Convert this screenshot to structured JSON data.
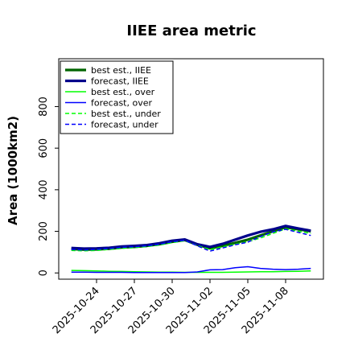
{
  "chart_data": {
    "type": "line",
    "title": "IIEE area metric",
    "xlabel": "",
    "ylabel": "Area (1000km2)",
    "ylim": [
      -30,
      1030
    ],
    "xlim": [
      "2025-10-21",
      "2025-11-11"
    ],
    "yticks": [
      0,
      200,
      400,
      600,
      800
    ],
    "xticks": [
      "2025-10-24",
      "2025-10-27",
      "2025-10-30",
      "2025-11-02",
      "2025-11-05",
      "2025-11-08"
    ],
    "xtick_colors": [
      "#000000",
      "#000000",
      "#228B22",
      "#000000",
      "#000000",
      "#000000"
    ],
    "legend_placement": "upper-left",
    "grid": false,
    "x": [
      "2025-10-22",
      "2025-10-23",
      "2025-10-24",
      "2025-10-25",
      "2025-10-26",
      "2025-10-27",
      "2025-10-28",
      "2025-10-29",
      "2025-10-30",
      "2025-10-31",
      "2025-11-01",
      "2025-11-02",
      "2025-11-03",
      "2025-11-04",
      "2025-11-05",
      "2025-11-06",
      "2025-11-07",
      "2025-11-08",
      "2025-11-09",
      "2025-11-10"
    ],
    "series": [
      {
        "name": "best est., IIEE",
        "color": "#006400",
        "style": "solid",
        "width": "thick",
        "values": [
          115,
          112,
          113,
          116,
          122,
          125,
          130,
          138,
          150,
          158,
          135,
          118,
          130,
          145,
          160,
          180,
          200,
          220,
          210,
          200
        ]
      },
      {
        "name": "forecast, IIEE",
        "color": "#00008B",
        "style": "solid",
        "width": "thick",
        "values": [
          120,
          117,
          118,
          121,
          127,
          130,
          134,
          143,
          155,
          161,
          138,
          125,
          140,
          160,
          180,
          198,
          210,
          226,
          214,
          203
        ]
      },
      {
        "name": "best est., over",
        "color": "#00ff00",
        "style": "solid",
        "width": "normal",
        "values": [
          12,
          11,
          10,
          8,
          7,
          6,
          5,
          4,
          4,
          3,
          3,
          3,
          3,
          4,
          5,
          6,
          6,
          7,
          8,
          10
        ]
      },
      {
        "name": "forecast, over",
        "color": "#0000ff",
        "style": "solid",
        "width": "normal",
        "values": [
          4,
          4,
          3,
          3,
          3,
          2,
          2,
          2,
          2,
          2,
          5,
          15,
          16,
          25,
          30,
          22,
          18,
          16,
          18,
          22
        ]
      },
      {
        "name": "best est., under",
        "color": "#00ff00",
        "style": "dashed",
        "width": "normal",
        "values": [
          108,
          106,
          108,
          113,
          118,
          122,
          127,
          134,
          146,
          155,
          132,
          112,
          125,
          138,
          150,
          168,
          190,
          212,
          200,
          190
        ]
      },
      {
        "name": "forecast, under",
        "color": "#0000ff",
        "style": "dashed",
        "width": "normal",
        "values": [
          113,
          110,
          113,
          117,
          123,
          126,
          130,
          138,
          150,
          157,
          130,
          105,
          120,
          135,
          148,
          175,
          198,
          210,
          195,
          180
        ]
      }
    ]
  }
}
